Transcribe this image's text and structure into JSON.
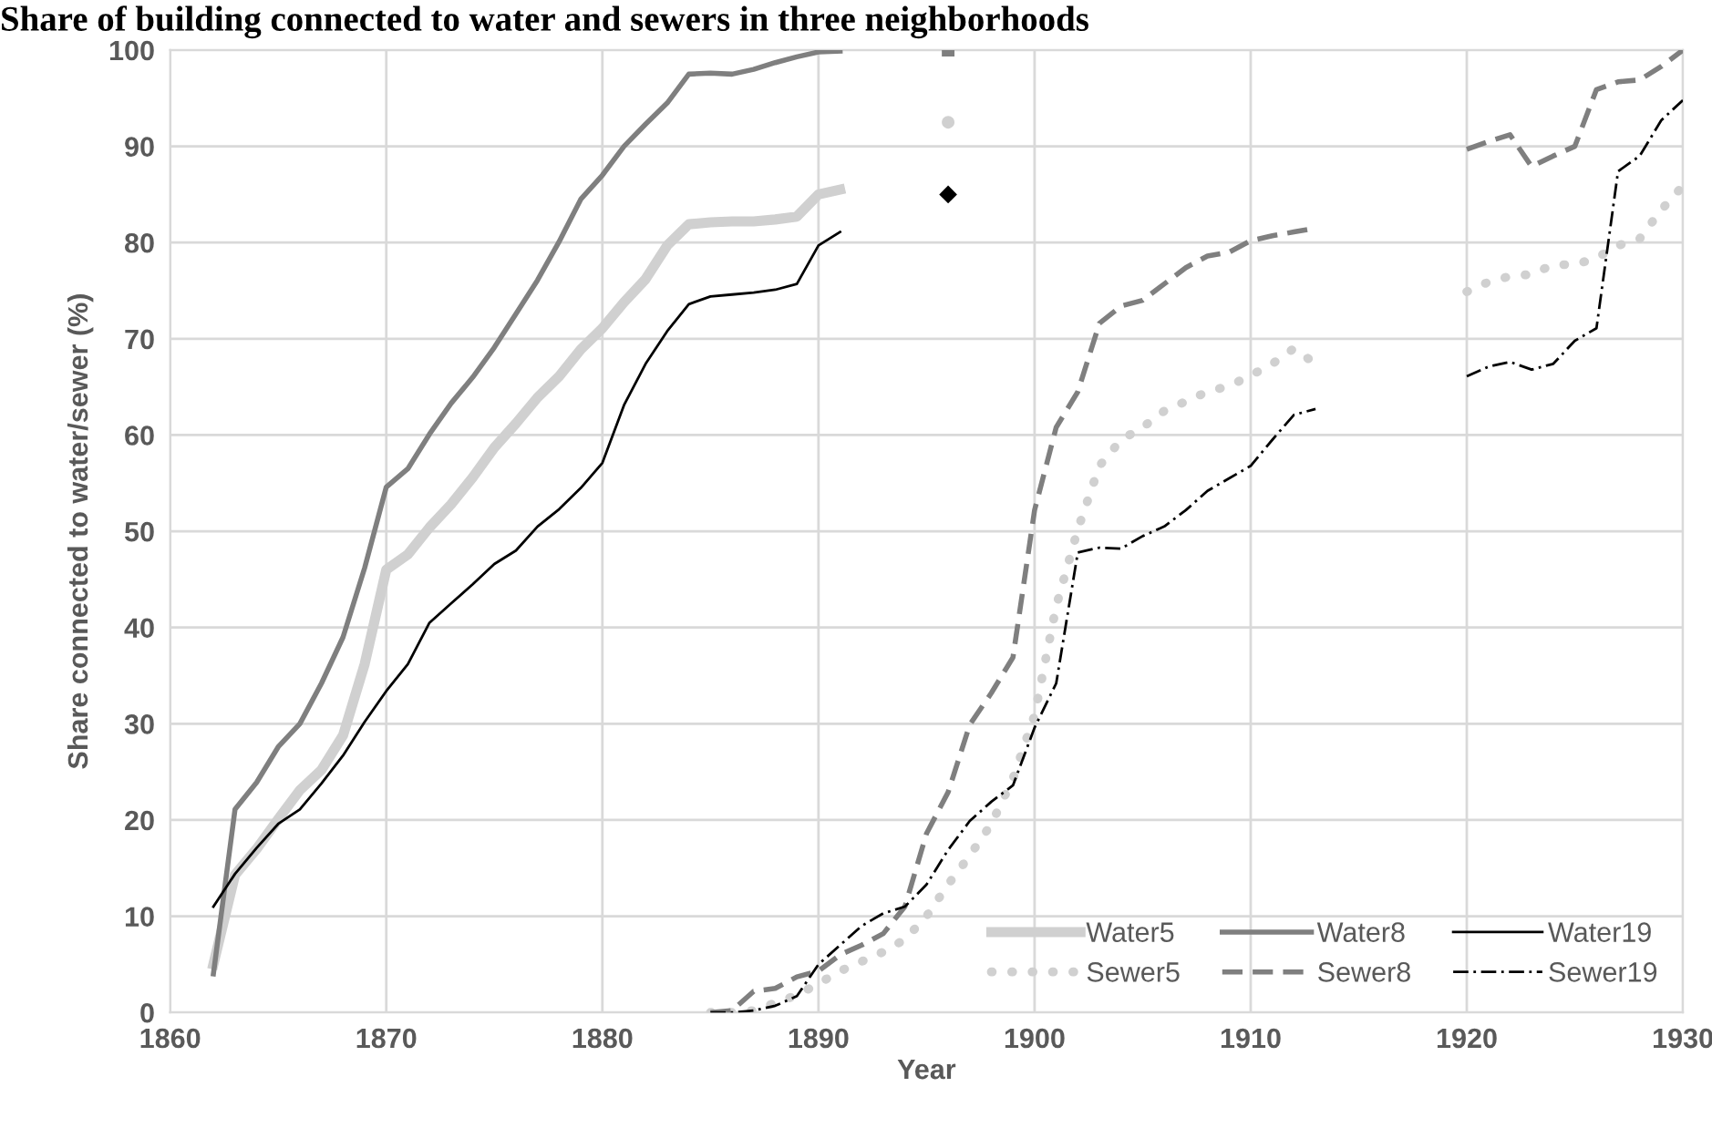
{
  "chart_data": {
    "type": "line",
    "title": "Share of building connected to water and sewers in three neighborhoods",
    "xlabel": "Year",
    "ylabel": "Share connected to water/sewer (%)",
    "xlim": [
      1860,
      1930
    ],
    "xticks": [
      1860,
      1870,
      1880,
      1890,
      1900,
      1910,
      1920,
      1930
    ],
    "ylim": [
      0,
      100
    ],
    "yticks": [
      0,
      10,
      20,
      30,
      40,
      50,
      60,
      70,
      80,
      90,
      100
    ],
    "grid": true,
    "legend": "bottom right",
    "series": [
      {
        "name": "Water5",
        "color": "#d0d0d0",
        "line_style": "solid",
        "x": [
          1862,
          1863,
          1864,
          1865,
          1866,
          1867,
          1868,
          1869,
          1870,
          1871,
          1872,
          1873,
          1874,
          1875,
          1876,
          1877,
          1878,
          1879,
          1880,
          1881,
          1882,
          1883,
          1884,
          1885,
          1886,
          1887,
          1888,
          1889,
          1890,
          1891,
          1892,
          1896
        ],
        "values": [
          5.0,
          14.3,
          17.0,
          20.1,
          23.1,
          25.2,
          28.8,
          36.2,
          46.0,
          47.6,
          50.4,
          52.8,
          55.6,
          58.7,
          61.2,
          63.9,
          66.1,
          68.9,
          71.1,
          73.8,
          76.2,
          79.7,
          81.9,
          82.1,
          82.2,
          82.2,
          82.4,
          82.7,
          85.0,
          85.5,
          null,
          92.5
        ]
      },
      {
        "name": "Water8",
        "color": "#7f7f7f",
        "line_style": "solid",
        "x": [
          1862,
          1863,
          1864,
          1865,
          1866,
          1867,
          1868,
          1869,
          1870,
          1871,
          1872,
          1873,
          1874,
          1875,
          1876,
          1877,
          1878,
          1879,
          1880,
          1881,
          1882,
          1883,
          1884,
          1885,
          1886,
          1887,
          1888,
          1889,
          1890,
          1891,
          1892,
          1896
        ],
        "values": [
          4.0,
          21.1,
          23.9,
          27.6,
          30.0,
          34.2,
          39.0,
          46.2,
          54.6,
          56.5,
          60.1,
          63.3,
          66.0,
          69.1,
          72.6,
          76.1,
          80.1,
          84.5,
          87.0,
          90.0,
          92.3,
          94.5,
          97.5,
          97.6,
          97.5,
          98.0,
          98.7,
          99.3,
          99.8,
          99.9,
          null,
          100
        ]
      },
      {
        "name": "Water19",
        "color": "#000000",
        "line_style": "solid",
        "x": [
          1862,
          1863,
          1864,
          1865,
          1866,
          1867,
          1868,
          1869,
          1870,
          1871,
          1872,
          1873,
          1874,
          1875,
          1876,
          1877,
          1878,
          1879,
          1880,
          1881,
          1882,
          1883,
          1884,
          1885,
          1886,
          1887,
          1888,
          1889,
          1890,
          1891,
          1892,
          1896
        ],
        "values": [
          11.0,
          14.4,
          17.1,
          19.6,
          21.1,
          23.8,
          26.7,
          30.2,
          33.4,
          36.2,
          40.5,
          42.5,
          44.5,
          46.6,
          48.0,
          50.5,
          52.3,
          54.5,
          57.1,
          63.1,
          67.4,
          70.8,
          73.6,
          74.4,
          74.6,
          74.8,
          75.1,
          75.7,
          79.7,
          81.1,
          null,
          85
        ]
      },
      {
        "name": "Sewer5",
        "color": "#d0d0d0",
        "line_style": "dotted",
        "x": [
          1885,
          1886,
          1887,
          1888,
          1889,
          1890,
          1891,
          1892,
          1893,
          1894,
          1895,
          1896,
          1897,
          1898,
          1899,
          1900,
          1901,
          1902,
          1903,
          1904,
          1905,
          1906,
          1907,
          1908,
          1909,
          1910,
          1911,
          1912,
          1913,
          1914,
          1920,
          1921,
          1922,
          1923,
          1924,
          1925,
          1926,
          1927,
          1928,
          1929,
          1930
        ],
        "values": [
          0,
          0,
          0.2,
          1.0,
          1.8,
          3.0,
          4.3,
          5.3,
          6.3,
          7.6,
          10.0,
          13.3,
          16.3,
          19.6,
          24.3,
          30.9,
          42.2,
          50.2,
          56.8,
          59.5,
          60.8,
          62.5,
          63.5,
          64.5,
          65.1,
          66.2,
          67.4,
          69.0,
          67.4,
          null,
          74.9,
          75.9,
          76.5,
          76.7,
          77.7,
          77.7,
          78.4,
          79.7,
          80.4,
          83.4,
          85.9
        ]
      },
      {
        "name": "Sewer8",
        "color": "#7f7f7f",
        "line_style": "dashed",
        "x": [
          1885,
          1886,
          1887,
          1888,
          1889,
          1890,
          1891,
          1892,
          1893,
          1894,
          1895,
          1896,
          1897,
          1898,
          1899,
          1900,
          1901,
          1902,
          1903,
          1904,
          1905,
          1906,
          1907,
          1908,
          1909,
          1910,
          1911,
          1912,
          1913,
          1914,
          1920,
          1921,
          1922,
          1923,
          1924,
          1925,
          1926,
          1927,
          1928,
          1929,
          1930
        ],
        "values": [
          0,
          0.2,
          2.2,
          2.5,
          3.7,
          4.3,
          6.0,
          7.0,
          8.2,
          11.0,
          18.6,
          22.9,
          29.9,
          33.2,
          36.9,
          52.2,
          60.8,
          64.5,
          71.6,
          73.4,
          74.0,
          75.7,
          77.4,
          78.6,
          79.0,
          80.2,
          80.7,
          81.1,
          81.5,
          null,
          89.7,
          90.5,
          91.2,
          87.9,
          89.0,
          90.0,
          95.9,
          96.7,
          96.9,
          98.3,
          100
        ]
      },
      {
        "name": "Sewer19",
        "color": "#000000",
        "line_style": "dashdot",
        "x": [
          1885,
          1886,
          1887,
          1888,
          1889,
          1890,
          1891,
          1892,
          1893,
          1894,
          1895,
          1896,
          1897,
          1898,
          1899,
          1900,
          1901,
          1902,
          1903,
          1904,
          1905,
          1906,
          1907,
          1908,
          1909,
          1910,
          1911,
          1912,
          1913,
          1914,
          1920,
          1921,
          1922,
          1923,
          1924,
          1925,
          1926,
          1927,
          1928,
          1929,
          1930
        ],
        "values": [
          0,
          0,
          0.2,
          0.7,
          1.7,
          5.0,
          7.0,
          9.0,
          10.3,
          11.0,
          13.3,
          16.9,
          19.9,
          21.9,
          23.6,
          29.6,
          34.2,
          47.8,
          48.3,
          48.2,
          49.5,
          50.5,
          52.2,
          54.2,
          55.5,
          56.8,
          59.5,
          62.1,
          62.7,
          null,
          66.1,
          67.1,
          67.6,
          66.8,
          67.4,
          69.8,
          71.1,
          87.4,
          89.0,
          92.7,
          94.8
        ]
      }
    ]
  }
}
